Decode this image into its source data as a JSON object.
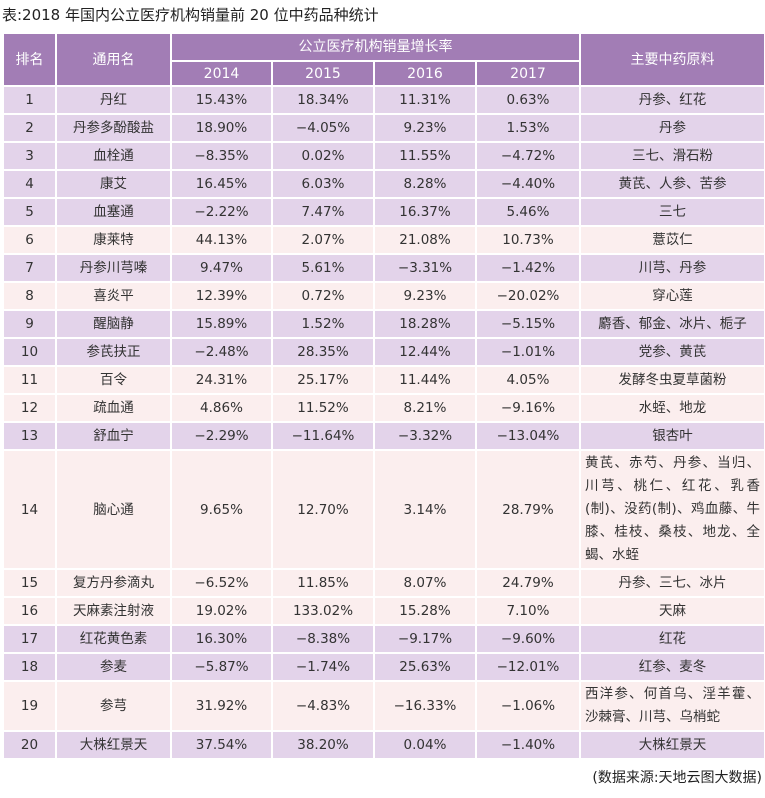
{
  "title": "表:2018 年国内公立医疗机构销量前 20 位中药品种统计",
  "headers": {
    "rank": "排名",
    "name": "通用名",
    "growth_group": "公立医疗机构销量增长率",
    "years": [
      "2014",
      "2015",
      "2016",
      "2017"
    ],
    "materials": "主要中药原料"
  },
  "colors": {
    "header": "#a27db5",
    "row_purple": "#e3d3ea",
    "row_pink": "#fbeeee"
  },
  "rows": [
    {
      "rank": "1",
      "name": "丹红",
      "v": [
        "15.43%",
        "18.34%",
        "11.31%",
        "0.63%"
      ],
      "materials": "丹参、红花",
      "tone": "purple"
    },
    {
      "rank": "2",
      "name": "丹参多酚酸盐",
      "v": [
        "18.90%",
        "−4.05%",
        "9.23%",
        "1.53%"
      ],
      "materials": "丹参",
      "tone": "purple"
    },
    {
      "rank": "3",
      "name": "血栓通",
      "v": [
        "−8.35%",
        "0.02%",
        "11.55%",
        "−4.72%"
      ],
      "materials": "三七、滑石粉",
      "tone": "purple"
    },
    {
      "rank": "4",
      "name": "康艾",
      "v": [
        "16.45%",
        "6.03%",
        "8.28%",
        "−4.40%"
      ],
      "materials": "黄芪、人参、苦参",
      "tone": "purple"
    },
    {
      "rank": "5",
      "name": "血塞通",
      "v": [
        "−2.22%",
        "7.47%",
        "16.37%",
        "5.46%"
      ],
      "materials": "三七",
      "tone": "purple"
    },
    {
      "rank": "6",
      "name": "康莱特",
      "v": [
        "44.13%",
        "2.07%",
        "21.08%",
        "10.73%"
      ],
      "materials": "薏苡仁",
      "tone": "pink"
    },
    {
      "rank": "7",
      "name": "丹参川芎嗪",
      "v": [
        "9.47%",
        "5.61%",
        "−3.31%",
        "−1.42%"
      ],
      "materials": "川芎、丹参",
      "tone": "purple"
    },
    {
      "rank": "8",
      "name": "喜炎平",
      "v": [
        "12.39%",
        "0.72%",
        "9.23%",
        "−20.02%"
      ],
      "materials": "穿心莲",
      "tone": "pink"
    },
    {
      "rank": "9",
      "name": "醒脑静",
      "v": [
        "15.89%",
        "1.52%",
        "18.28%",
        "−5.15%"
      ],
      "materials": "麝香、郁金、冰片、栀子",
      "tone": "purple"
    },
    {
      "rank": "10",
      "name": "参芪扶正",
      "v": [
        "−2.48%",
        "28.35%",
        "12.44%",
        "−1.01%"
      ],
      "materials": "党参、黄芪",
      "tone": "purple"
    },
    {
      "rank": "11",
      "name": "百令",
      "v": [
        "24.31%",
        "25.17%",
        "11.44%",
        "4.05%"
      ],
      "materials": "发酵冬虫夏草菌粉",
      "tone": "pink"
    },
    {
      "rank": "12",
      "name": "疏血通",
      "v": [
        "4.86%",
        "11.52%",
        "8.21%",
        "−9.16%"
      ],
      "materials": "水蛭、地龙",
      "tone": "pink"
    },
    {
      "rank": "13",
      "name": "舒血宁",
      "v": [
        "−2.29%",
        "−11.64%",
        "−3.32%",
        "−13.04%"
      ],
      "materials": "银杏叶",
      "tone": "purple"
    },
    {
      "rank": "14",
      "name": "脑心通",
      "v": [
        "9.65%",
        "12.70%",
        "3.14%",
        "28.79%"
      ],
      "materials": "黄芪、赤芍、丹参、当归、川芎、桃仁、红花、乳香(制)、没药(制)、鸡血藤、牛膝、桂枝、桑枝、地龙、全蝎、水蛭",
      "tone": "pink"
    },
    {
      "rank": "15",
      "name": "复方丹参滴丸",
      "v": [
        "−6.52%",
        "11.85%",
        "8.07%",
        "24.79%"
      ],
      "materials": "丹参、三七、冰片",
      "tone": "pink"
    },
    {
      "rank": "16",
      "name": "天麻素注射液",
      "v": [
        "19.02%",
        "133.02%",
        "15.28%",
        "7.10%"
      ],
      "materials": "天麻",
      "tone": "pink"
    },
    {
      "rank": "17",
      "name": "红花黄色素",
      "v": [
        "16.30%",
        "−8.38%",
        "−9.17%",
        "−9.60%"
      ],
      "materials": "红花",
      "tone": "purple"
    },
    {
      "rank": "18",
      "name": "参麦",
      "v": [
        "−5.87%",
        "−1.74%",
        "25.63%",
        "−12.01%"
      ],
      "materials": "红参、麦冬",
      "tone": "purple"
    },
    {
      "rank": "19",
      "name": "参芎",
      "v": [
        "31.92%",
        "−4.83%",
        "−16.33%",
        "−1.06%"
      ],
      "materials": "西洋参、何首乌、淫羊藿、沙棘膏、川芎、乌梢蛇",
      "tone": "pink"
    },
    {
      "rank": "20",
      "name": "大株红景天",
      "v": [
        "37.54%",
        "38.20%",
        "0.04%",
        "−1.40%"
      ],
      "materials": "大株红景天",
      "tone": "purple"
    }
  ],
  "source": "(数据来源:天地云图大数据)"
}
